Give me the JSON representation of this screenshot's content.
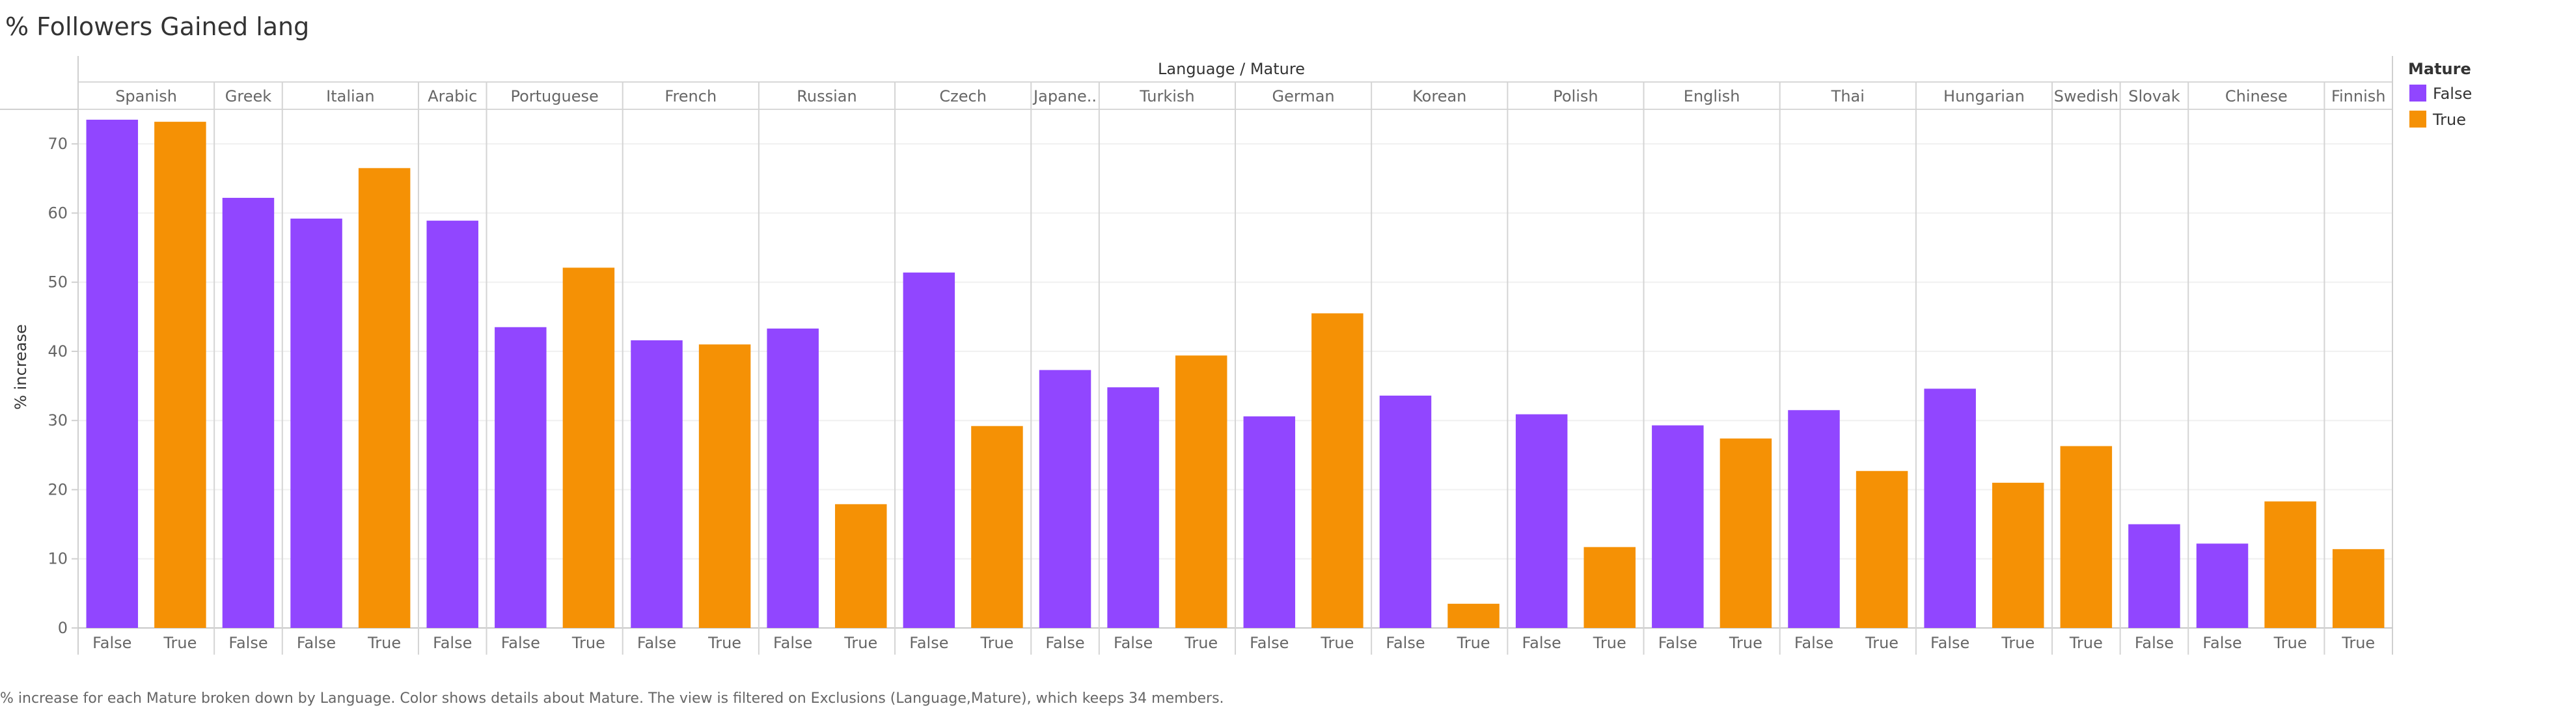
{
  "title": "% Followers Gained lang",
  "column_header": "Language / Mature",
  "caption": "% increase for each Mature broken down by Language.  Color shows details about Mature. The view is filtered on Exclusions (Language,Mature), which keeps 34 members.",
  "legend": {
    "title": "Mature",
    "items": [
      {
        "label": "False",
        "color": "#9146ff"
      },
      {
        "label": "True",
        "color": "#f59105"
      }
    ]
  },
  "colors": {
    "False": "#9146ff",
    "True": "#f59105"
  },
  "chart_data": {
    "type": "bar",
    "title": "% Followers Gained lang",
    "xlabel": "Language / Mature",
    "ylabel": "% increase",
    "ylim": [
      0,
      75
    ],
    "yticks": [
      0,
      10,
      20,
      30,
      40,
      50,
      60,
      70
    ],
    "grid": true,
    "legend_position": "right",
    "groups": [
      {
        "language": "Spanish",
        "label": "Spanish",
        "bars": [
          {
            "mature": "False",
            "value": 73.5
          },
          {
            "mature": "True",
            "value": 73.2
          }
        ]
      },
      {
        "language": "Greek",
        "label": "Greek",
        "bars": [
          {
            "mature": "False",
            "value": 62.2
          }
        ]
      },
      {
        "language": "Italian",
        "label": "Italian",
        "bars": [
          {
            "mature": "False",
            "value": 59.2
          },
          {
            "mature": "True",
            "value": 66.5
          }
        ]
      },
      {
        "language": "Arabic",
        "label": "Arabic",
        "bars": [
          {
            "mature": "False",
            "value": 58.9
          }
        ]
      },
      {
        "language": "Portuguese",
        "label": "Portuguese",
        "bars": [
          {
            "mature": "False",
            "value": 43.5
          },
          {
            "mature": "True",
            "value": 52.1
          }
        ]
      },
      {
        "language": "French",
        "label": "French",
        "bars": [
          {
            "mature": "False",
            "value": 41.6
          },
          {
            "mature": "True",
            "value": 41.0
          }
        ]
      },
      {
        "language": "Russian",
        "label": "Russian",
        "bars": [
          {
            "mature": "False",
            "value": 43.3
          },
          {
            "mature": "True",
            "value": 17.9
          }
        ]
      },
      {
        "language": "Czech",
        "label": "Czech",
        "bars": [
          {
            "mature": "False",
            "value": 51.4
          },
          {
            "mature": "True",
            "value": 29.2
          }
        ]
      },
      {
        "language": "Japanese",
        "label": "Japane..",
        "bars": [
          {
            "mature": "False",
            "value": 37.3
          }
        ]
      },
      {
        "language": "Turkish",
        "label": "Turkish",
        "bars": [
          {
            "mature": "False",
            "value": 34.8
          },
          {
            "mature": "True",
            "value": 39.4
          }
        ]
      },
      {
        "language": "German",
        "label": "German",
        "bars": [
          {
            "mature": "False",
            "value": 30.6
          },
          {
            "mature": "True",
            "value": 45.5
          }
        ]
      },
      {
        "language": "Korean",
        "label": "Korean",
        "bars": [
          {
            "mature": "False",
            "value": 33.6
          },
          {
            "mature": "True",
            "value": 3.5
          }
        ]
      },
      {
        "language": "Polish",
        "label": "Polish",
        "bars": [
          {
            "mature": "False",
            "value": 30.9
          },
          {
            "mature": "True",
            "value": 11.7
          }
        ]
      },
      {
        "language": "English",
        "label": "English",
        "bars": [
          {
            "mature": "False",
            "value": 29.3
          },
          {
            "mature": "True",
            "value": 27.4
          }
        ]
      },
      {
        "language": "Thai",
        "label": "Thai",
        "bars": [
          {
            "mature": "False",
            "value": 31.5
          },
          {
            "mature": "True",
            "value": 22.7
          }
        ]
      },
      {
        "language": "Hungarian",
        "label": "Hungarian",
        "bars": [
          {
            "mature": "False",
            "value": 34.6
          },
          {
            "mature": "True",
            "value": 21.0
          }
        ]
      },
      {
        "language": "Swedish",
        "label": "Swedish",
        "bars": [
          {
            "mature": "True",
            "value": 26.3
          }
        ]
      },
      {
        "language": "Slovak",
        "label": "Slovak",
        "bars": [
          {
            "mature": "False",
            "value": 15.0
          }
        ]
      },
      {
        "language": "Chinese",
        "label": "Chinese",
        "bars": [
          {
            "mature": "False",
            "value": 12.2
          },
          {
            "mature": "True",
            "value": 18.3
          }
        ]
      },
      {
        "language": "Finnish",
        "label": "Finnish",
        "bars": [
          {
            "mature": "True",
            "value": 11.4
          }
        ]
      }
    ]
  }
}
